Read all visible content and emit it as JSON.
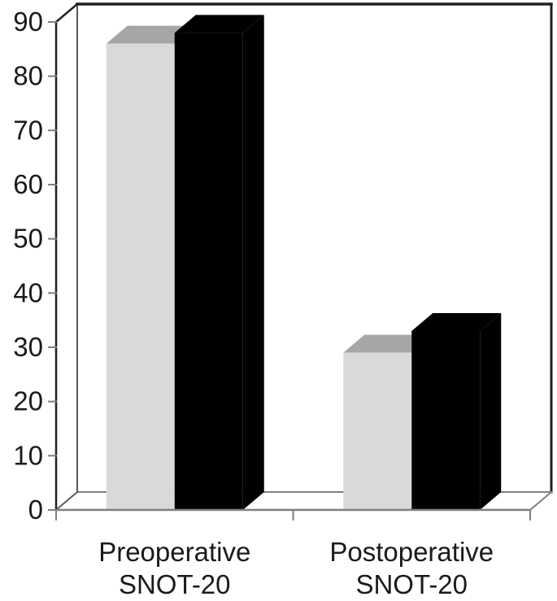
{
  "chart_data": {
    "type": "bar",
    "style": "3d-clustered-column",
    "title": "",
    "xlabel": "",
    "ylabel": "",
    "categories": [
      "Preoperative SNOT-20",
      "Postoperative SNOT-20"
    ],
    "category_label_lines": [
      [
        "Preoperative",
        "SNOT-20"
      ],
      [
        "Postoperative",
        "SNOT-20"
      ]
    ],
    "series": [
      {
        "name": "light-gray-bar",
        "values": [
          86,
          29
        ],
        "color": "#d9d9d9"
      },
      {
        "name": "black-bar",
        "values": [
          88,
          33
        ],
        "color": "#000000"
      }
    ],
    "ylim": [
      0,
      90
    ],
    "y_ticks": [
      0,
      10,
      20,
      30,
      40,
      50,
      60,
      70,
      80,
      90
    ],
    "grid": false,
    "legend": false,
    "colors": {
      "background": "#ffffff",
      "bar_gray_front": "#d9d9d9",
      "bar_gray_top": "#a6a6a6",
      "bar_black": "#000000",
      "frame_dark": "#1f1f1f",
      "frame_mid": "#595959",
      "frame_light": "#7f7f7f",
      "tick": "#7f7f7f",
      "label_text": "#1a1a1a"
    }
  }
}
